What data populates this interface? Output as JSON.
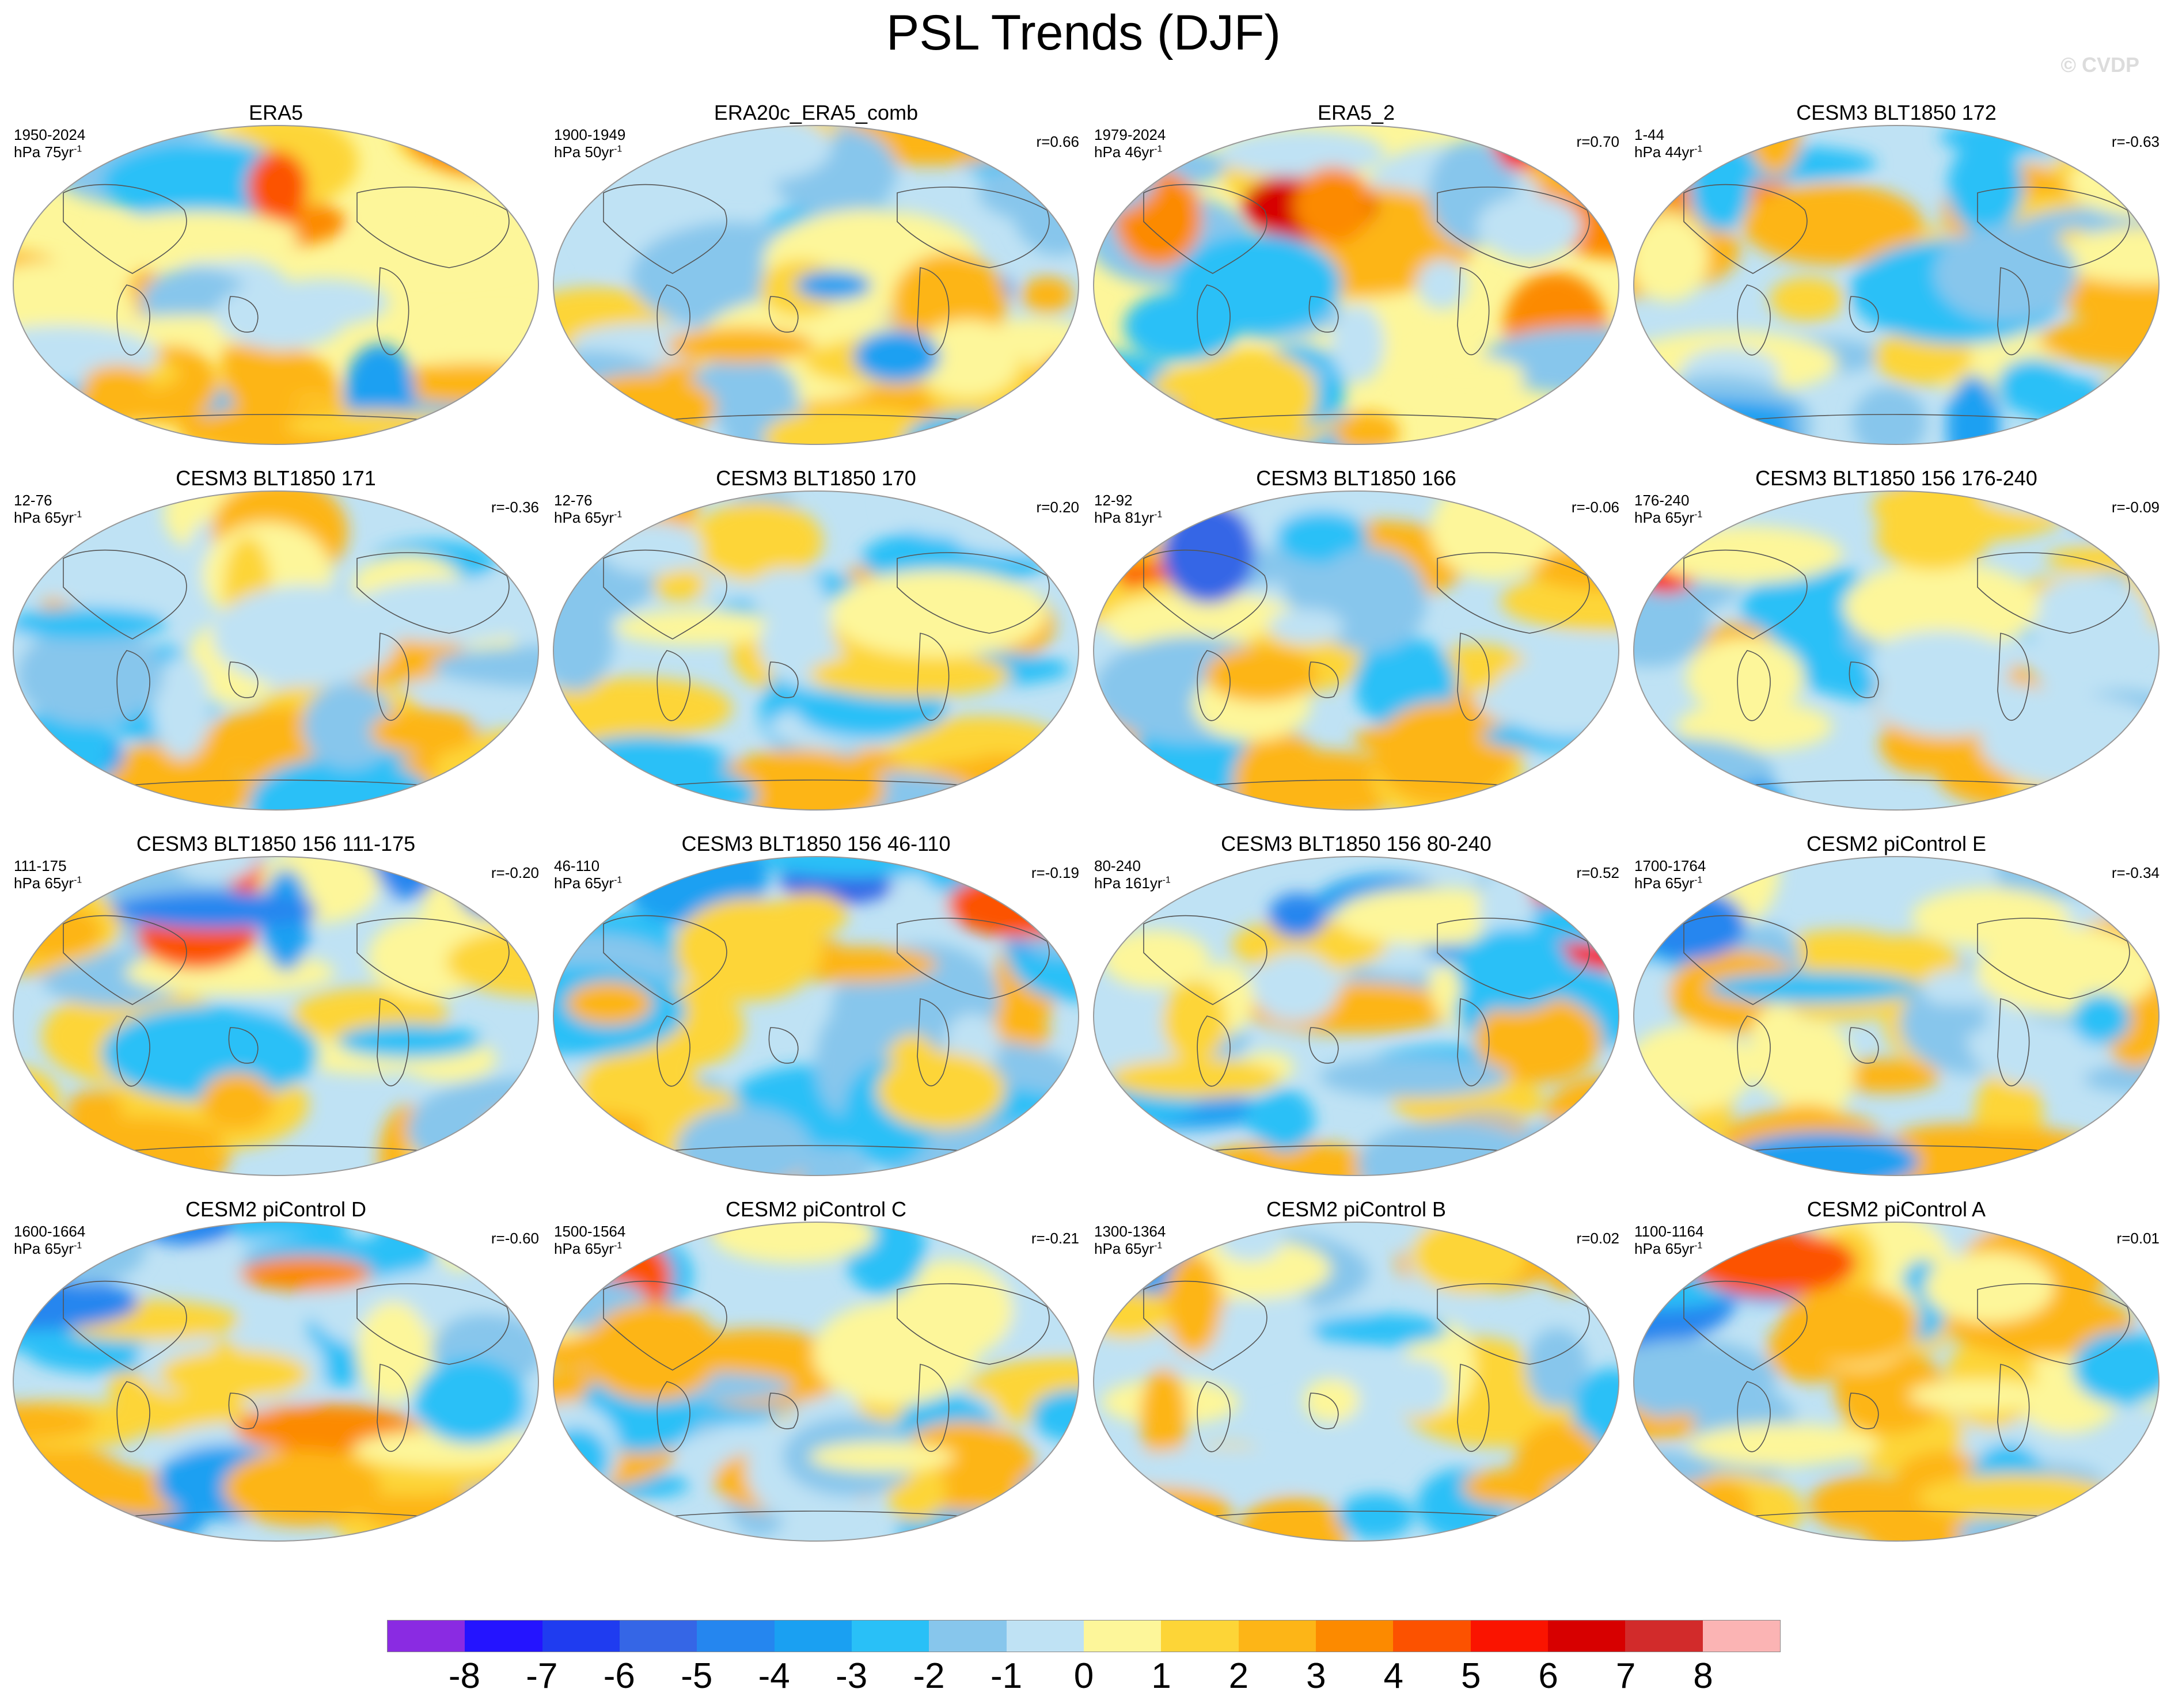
{
  "figure": {
    "title": "PSL Trends (DJF)",
    "watermark": "© CVDP"
  },
  "chart_data": {
    "type": "map-panels",
    "variable": "PSL",
    "season": "DJF",
    "colorbar": {
      "ticks": [
        "-8",
        "-7",
        "-6",
        "-5",
        "-4",
        "-3",
        "-2",
        "-1",
        "0",
        "1",
        "2",
        "3",
        "4",
        "5",
        "6",
        "7",
        "8"
      ],
      "colors": [
        "#8a2be2",
        "#2414ff",
        "#1f3cf0",
        "#3566e6",
        "#2586ef",
        "#1aa0f2",
        "#29c0f7",
        "#87c6ec",
        "#bfe2f4",
        "#fdf69a",
        "#fdd537",
        "#fdb517",
        "#fc8a00",
        "#fc5200",
        "#fa1400",
        "#d70000",
        "#d22b2b",
        "#fbb4b4"
      ]
    },
    "panels": [
      {
        "name": "ERA5",
        "years": "1950-2024",
        "units": "hPa 75yr",
        "corr": "",
        "palette_bias": 0.3,
        "seed": 11
      },
      {
        "name": "ERA20c_ERA5_comb",
        "years": "1900-1949",
        "units": "hPa 50yr",
        "corr": "r=0.66",
        "palette_bias": -0.2,
        "seed": 23
      },
      {
        "name": "ERA5_2",
        "years": "1979-2024",
        "units": "hPa 46yr",
        "corr": "r=0.70",
        "palette_bias": 0.3,
        "seed": 37
      },
      {
        "name": "CESM3 BLT1850 172",
        "years": "1-44",
        "units": "hPa 44yr",
        "corr": "r=-0.63",
        "palette_bias": 0.1,
        "seed": 41
      },
      {
        "name": "CESM3 BLT1850 171",
        "years": "12-76",
        "units": "hPa 65yr",
        "corr": "r=-0.36",
        "palette_bias": 0.0,
        "seed": 53
      },
      {
        "name": "CESM3 BLT1850 170",
        "years": "12-76",
        "units": "hPa 65yr",
        "corr": "r=0.20",
        "palette_bias": 0.0,
        "seed": 67
      },
      {
        "name": "CESM3 BLT1850 166",
        "years": "12-92",
        "units": "hPa 81yr",
        "corr": "r=-0.06",
        "palette_bias": 0.0,
        "seed": 71
      },
      {
        "name": "CESM3 BLT1850 156 176-240",
        "years": "176-240",
        "units": "hPa 65yr",
        "corr": "r=-0.09",
        "palette_bias": 0.1,
        "seed": 83
      },
      {
        "name": "CESM3 BLT1850 156 111-175",
        "years": "111-175",
        "units": "hPa 65yr",
        "corr": "r=-0.20",
        "palette_bias": 0.1,
        "seed": 97
      },
      {
        "name": "CESM3 BLT1850 156 46-110",
        "years": "46-110",
        "units": "hPa 65yr",
        "corr": "r=-0.19",
        "palette_bias": 0.0,
        "seed": 101
      },
      {
        "name": "CESM3 BLT1850 156 80-240",
        "years": "80-240",
        "units": "hPa 161yr",
        "corr": "r=0.52",
        "palette_bias": 0.0,
        "seed": 113
      },
      {
        "name": "CESM2 piControl E",
        "years": "1700-1764",
        "units": "hPa 65yr",
        "corr": "r=-0.34",
        "palette_bias": 0.0,
        "seed": 127
      },
      {
        "name": "CESM2 piControl D",
        "years": "1600-1664",
        "units": "hPa 65yr",
        "corr": "r=-0.60",
        "palette_bias": 0.1,
        "seed": 131
      },
      {
        "name": "CESM2 piControl C",
        "years": "1500-1564",
        "units": "hPa 65yr",
        "corr": "r=-0.21",
        "palette_bias": 0.0,
        "seed": 149
      },
      {
        "name": "CESM2 piControl B",
        "years": "1300-1364",
        "units": "hPa 65yr",
        "corr": "r=0.02",
        "palette_bias": 0.0,
        "seed": 151
      },
      {
        "name": "CESM2 piControl A",
        "years": "1100-1164",
        "units": "hPa 65yr",
        "corr": "r=0.01",
        "palette_bias": 0.1,
        "seed": 163
      }
    ]
  }
}
